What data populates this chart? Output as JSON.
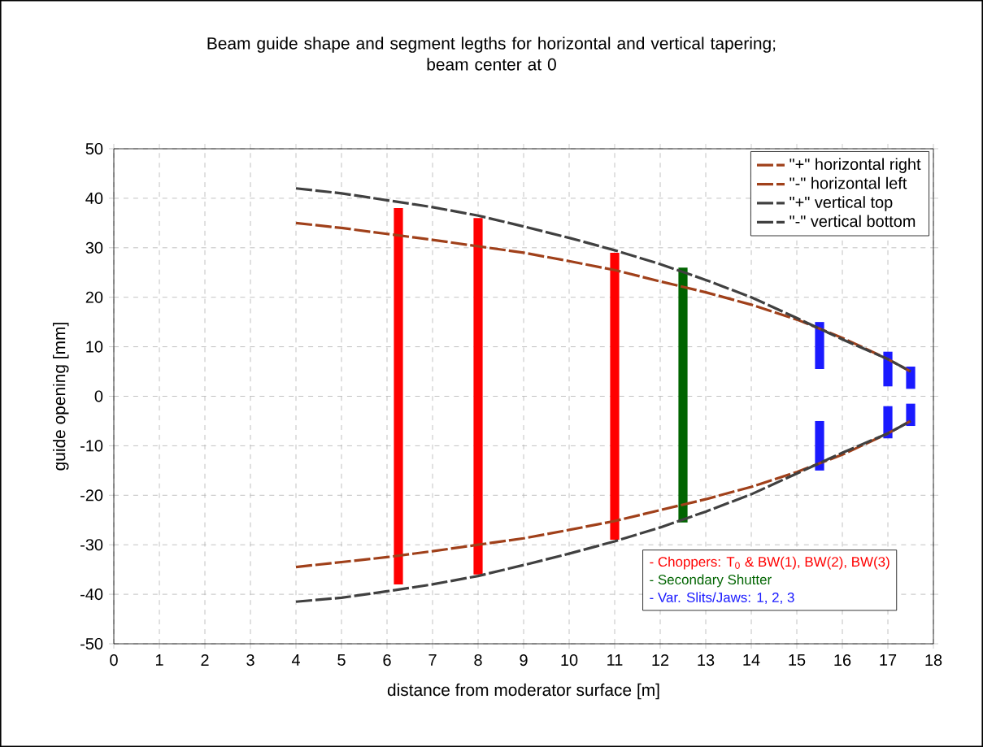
{
  "chart_data": {
    "type": "line",
    "title": "Beam guide shape and segment legths for horizontal and vertical tapering;\nbeam center at 0",
    "xlabel": "distance from moderator surface [m]",
    "ylabel": "guide opening [mm]",
    "xlim": [
      0,
      18
    ],
    "ylim": [
      -50,
      50
    ],
    "xticks": [
      0,
      1,
      2,
      3,
      4,
      5,
      6,
      7,
      8,
      9,
      10,
      11,
      12,
      13,
      14,
      15,
      16,
      17,
      18
    ],
    "yticks": [
      -50,
      -40,
      -30,
      -20,
      -10,
      0,
      10,
      20,
      30,
      40,
      50
    ],
    "grid": true,
    "legend": "top right",
    "marker": "none",
    "line_style": "dashed",
    "series": [
      {
        "name": "\"+\" horizontal right",
        "color": "#a0401a",
        "x": [
          4,
          5,
          6,
          7,
          8,
          9,
          10,
          11,
          12,
          13,
          14,
          15,
          16,
          17,
          17.5
        ],
        "values": [
          35,
          34,
          32.8,
          31.6,
          30.3,
          29,
          27.3,
          25.5,
          23.2,
          21,
          18.5,
          15.5,
          11.8,
          7.5,
          5
        ]
      },
      {
        "name": "\"-\" horizontal left",
        "color": "#a0401a",
        "x": [
          4,
          5,
          6,
          7,
          8,
          9,
          10,
          11,
          12,
          13,
          14,
          15,
          16,
          17,
          17.5
        ],
        "values": [
          -34.5,
          -33.5,
          -32.5,
          -31.3,
          -30,
          -28.7,
          -27,
          -25.2,
          -23,
          -20.8,
          -18.3,
          -15.3,
          -11.8,
          -7.5,
          -5
        ]
      },
      {
        "name": "\"+\" vertical top",
        "color": "#404040",
        "x": [
          4,
          5,
          6,
          7,
          8,
          9,
          10,
          11,
          12,
          13,
          14,
          15,
          16,
          17,
          17.5
        ],
        "values": [
          42,
          41,
          39.6,
          38.2,
          36.5,
          34.3,
          32,
          29.5,
          26.7,
          23.5,
          20,
          15.8,
          11.5,
          7.5,
          5
        ]
      },
      {
        "name": "\"-\" vertical bottom",
        "color": "#404040",
        "x": [
          4,
          5,
          6,
          7,
          8,
          9,
          10,
          11,
          12,
          13,
          14,
          15,
          16,
          17,
          17.5
        ],
        "values": [
          -41.5,
          -40.7,
          -39.4,
          -38,
          -36.3,
          -34.1,
          -31.8,
          -29.3,
          -26.5,
          -23.3,
          -19.8,
          -15.6,
          -11.4,
          -7.5,
          -5
        ]
      },
      {
        "type": "bar",
        "name": "- Choppers: T$_{0}$ & BW(1), BW(2), BW(3)",
        "color": "#ff0000",
        "x": [
          6.25,
          8,
          11
        ],
        "base": [
          -38,
          -36,
          -29
        ],
        "values": [
          76,
          72,
          58
        ]
      },
      {
        "type": "bar",
        "name": "- Secondary Shutter",
        "color": "#006400",
        "x": [
          12.5
        ],
        "base": [
          -25.5
        ],
        "values": [
          51.5
        ]
      },
      {
        "type": "bar",
        "name": "- Var. Slits/Jaws: 1, 2, 3",
        "color": "#1a1aff",
        "x": [
          15.5,
          17,
          17.5
        ],
        "base": [
          5.5,
          2,
          1.5
        ],
        "values": [
          9.5,
          7,
          4.5
        ]
      },
      {
        "type": "bar",
        "color": "#1a1aff",
        "x": [
          15.5,
          17,
          17.5
        ],
        "base": [
          -15,
          -8.5,
          -6
        ],
        "values": [
          10,
          6.5,
          4.5
        ]
      }
    ]
  }
}
